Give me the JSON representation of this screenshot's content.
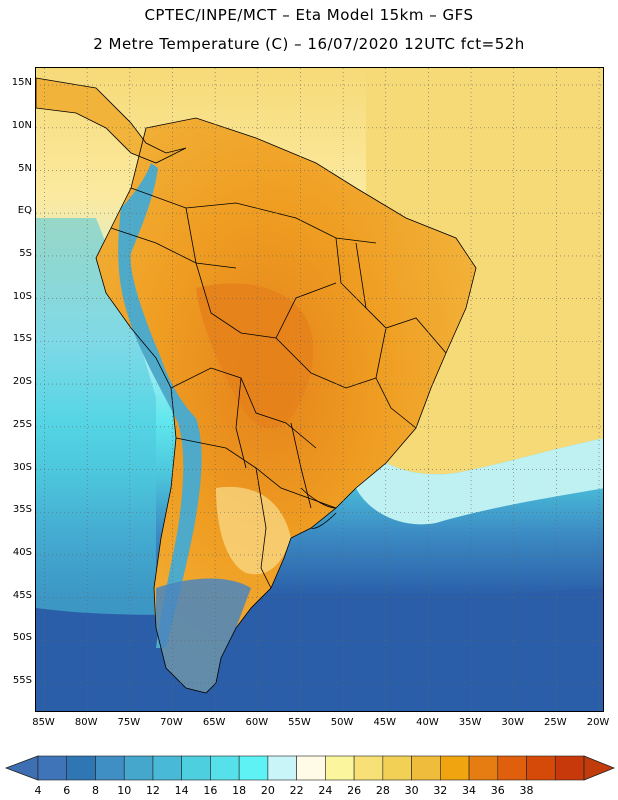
{
  "title_line1": "CPTEC/INPE/MCT –  Eta Model 15km – GFS",
  "title_line2": "2 Metre Temperature (C) – 16/07/2020 12UTC fct=52h",
  "lat_labels": [
    "15N",
    "10N",
    "5N",
    "EQ",
    "5S",
    "10S",
    "15S",
    "20S",
    "25S",
    "30S",
    "35S",
    "40S",
    "45S",
    "50S",
    "55S"
  ],
  "lon_labels": [
    "85W",
    "80W",
    "75W",
    "70W",
    "65W",
    "60W",
    "55W",
    "50W",
    "45W",
    "40W",
    "35W",
    "30W",
    "25W",
    "20W"
  ],
  "colorbar": {
    "labels": [
      "4",
      "6",
      "8",
      "10",
      "12",
      "14",
      "16",
      "18",
      "20",
      "22",
      "24",
      "26",
      "28",
      "30",
      "32",
      "34",
      "36",
      "38"
    ],
    "colors": [
      "#3f74b8",
      "#2f77b4",
      "#3f8fc4",
      "#45a7cc",
      "#48b9d6",
      "#4dcfe0",
      "#55e0ea",
      "#5ef2f5",
      "#c9f4f8",
      "#fffbe6",
      "#fbf59e",
      "#f7e176",
      "#f2cf55",
      "#efbc3c",
      "#efa410",
      "#e67d12",
      "#df5f0c",
      "#d54a09",
      "#c7390a"
    ],
    "left_arrow_color": "#3e6fb3",
    "right_arrow_color": "#c23b0b"
  },
  "palette": {
    "ocean_deep": "#2a5ea8",
    "ocean_mid": "#3c8cc4",
    "ocean_light": "#4cc6dc",
    "ocean_cyan": "#5fe6ee",
    "ocean_pale": "#bff0f2",
    "ocean_warm": "#fbeaa0",
    "ocean_tropical": "#f7da78",
    "land_hot": "#ef9e22",
    "land_warm": "#f2b33b",
    "land_core": "#e5821b",
    "andes_cold": "#4fa9c9",
    "patagonia": "#4a86be"
  }
}
